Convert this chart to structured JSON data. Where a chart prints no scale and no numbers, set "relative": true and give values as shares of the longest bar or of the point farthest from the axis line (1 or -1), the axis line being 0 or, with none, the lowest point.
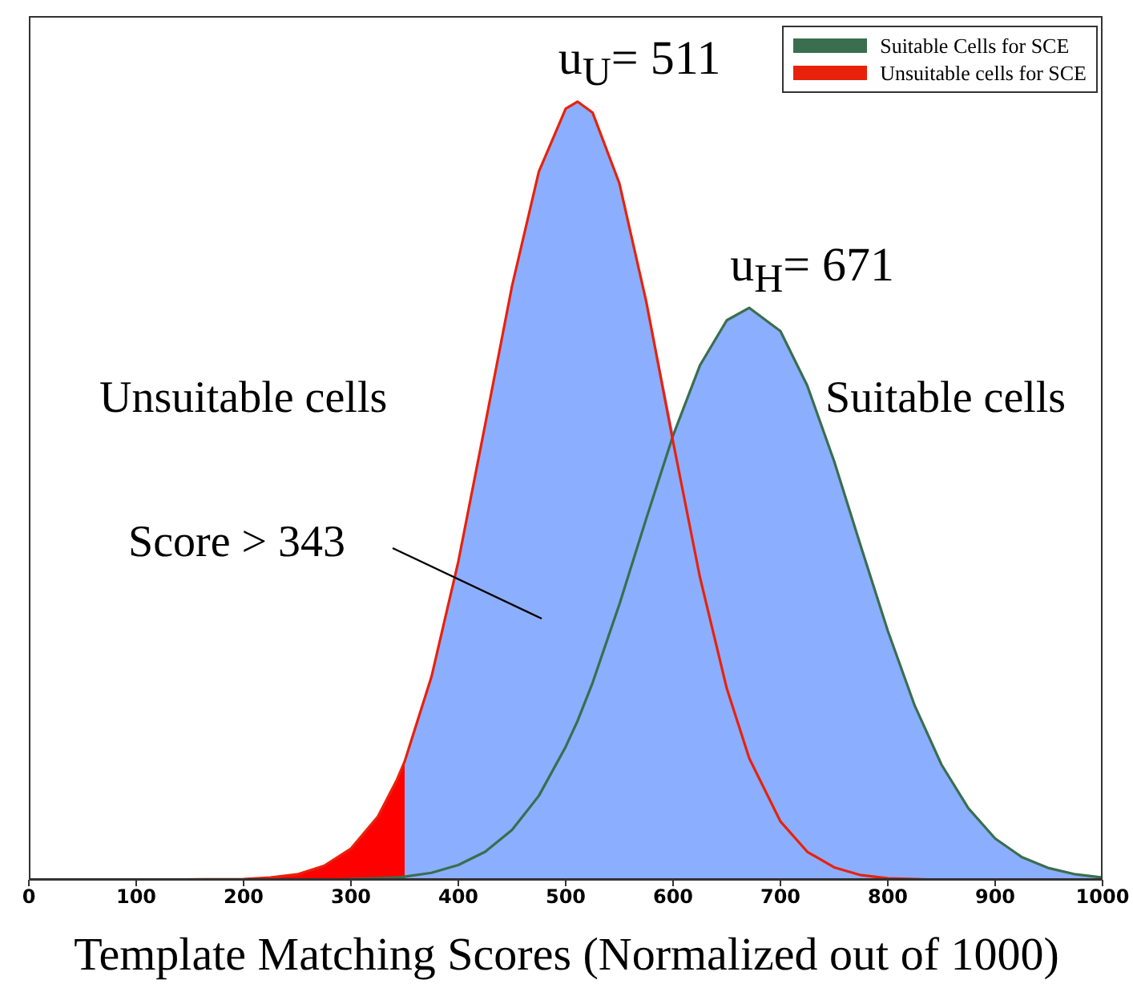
{
  "chart_data": {
    "type": "line",
    "relative": true,
    "xlabel": "Template Matching Scores (Normalized out of 1000)",
    "xlim": [
      0,
      1000
    ],
    "xticks": [
      0,
      100,
      200,
      300,
      400,
      500,
      600,
      700,
      800,
      900,
      1000
    ],
    "legend": "top right",
    "x": [
      0,
      100,
      200,
      225,
      250,
      275,
      300,
      325,
      343,
      350,
      375,
      400,
      425,
      450,
      475,
      500,
      511,
      525,
      550,
      575,
      600,
      625,
      650,
      671,
      700,
      725,
      750,
      775,
      800,
      825,
      850,
      875,
      900,
      925,
      950,
      975,
      1000
    ],
    "series": [
      {
        "type": "area",
        "color": "#8caeff",
        "x": [
          350,
          375,
          400,
          425,
          450,
          475,
          500,
          511,
          525,
          550,
          575,
          600,
          625,
          650,
          671,
          700,
          725,
          750,
          775,
          800,
          825,
          850,
          875,
          900,
          925,
          950,
          975,
          1000
        ],
        "values": [
          0.152,
          0.261,
          0.409,
          0.585,
          0.763,
          0.91,
          0.991,
          1,
          0.986,
          0.895,
          0.743,
          0.571,
          0.661,
          0.719,
          0.735,
          0.705,
          0.635,
          0.538,
          0.428,
          0.32,
          0.224,
          0.148,
          0.092,
          0.053,
          0.029,
          0.015,
          0.007,
          0.003
        ]
      },
      {
        "type": "area",
        "color": "#ff0000",
        "x": [
          225,
          250,
          275,
          300,
          325,
          343,
          350
        ],
        "values": [
          0.003,
          0.007,
          0.018,
          0.04,
          0.081,
          0.129,
          0.152
        ]
      },
      {
        "name": "Suitable Cells for SCE",
        "color": "#3a6e4f",
        "values": [
          null,
          null,
          null,
          null,
          null,
          0,
          0.001,
          0.002,
          0.003,
          0.004,
          0.009,
          0.019,
          0.036,
          0.064,
          0.108,
          0.171,
          0.204,
          0.253,
          0.354,
          0.464,
          0.571,
          0.661,
          0.719,
          0.735,
          0.705,
          0.635,
          0.538,
          0.428,
          0.32,
          0.224,
          0.148,
          0.092,
          0.053,
          0.029,
          0.015,
          0.007,
          0.003
        ]
      },
      {
        "name": "Unsuitable cells for SCE",
        "color": "#e8220a",
        "values": [
          0,
          0,
          0.001,
          0.003,
          0.007,
          0.018,
          0.04,
          0.081,
          0.129,
          0.152,
          0.261,
          0.409,
          0.585,
          0.763,
          0.91,
          0.991,
          1,
          0.986,
          0.895,
          0.743,
          0.563,
          0.389,
          0.246,
          0.156,
          0.075,
          0.036,
          0.016,
          0.006,
          0.002,
          0.001,
          0,
          null,
          null,
          null,
          null,
          null,
          null
        ]
      }
    ],
    "annotations": [
      {
        "text": "u$_{U}$= 511",
        "x": 511,
        "y": 1
      },
      {
        "text": "u$_{H}$= 671",
        "x": 671,
        "y": 0.735
      },
      "Unsuitable cells",
      "Suitable cells",
      "Score > 343"
    ]
  }
}
